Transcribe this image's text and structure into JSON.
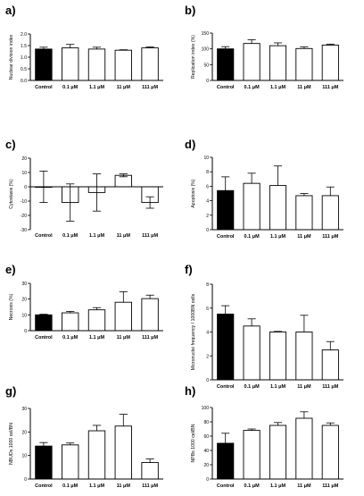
{
  "chart_data": [
    {
      "panel_label": "a)",
      "type": "bar",
      "categories": [
        "Control",
        "0.1 μM",
        "1.1 μM",
        "11 μM",
        "111 μM"
      ],
      "values": [
        1.35,
        1.4,
        1.35,
        1.3,
        1.4
      ],
      "errors": [
        0.08,
        0.15,
        0.08,
        0.02,
        0.04
      ],
      "ylabel": "Nuclear division index",
      "ylim": [
        0,
        2.0
      ],
      "yticks": [
        0.0,
        0.5,
        1.0,
        1.5,
        2.0
      ],
      "ytick_labels": [
        "0.0",
        "0.5",
        "1.0",
        "1.5",
        "2.0"
      ]
    },
    {
      "panel_label": "b)",
      "type": "bar",
      "categories": [
        "Control",
        "0.1 μM",
        "1.1 μM",
        "11 μM",
        "111 μM"
      ],
      "values": [
        100,
        117,
        110,
        101,
        112
      ],
      "errors": [
        7,
        12,
        9,
        5,
        3
      ],
      "ylabel": "Replication index (%)",
      "ylim": [
        0,
        150
      ],
      "yticks": [
        0,
        50,
        100,
        150
      ],
      "ytick_labels": [
        "0",
        "50",
        "100",
        "150"
      ]
    },
    {
      "panel_label": "c)",
      "type": "bar",
      "categories": [
        "Control",
        "0.1 μM",
        "1.1 μM",
        "11 μM",
        "111 μM"
      ],
      "values": [
        0,
        -11,
        -4,
        8,
        -11
      ],
      "errors": [
        11,
        13,
        13,
        1,
        4
      ],
      "ylabel": "Cytostasis (%)",
      "ylim": [
        -30,
        20
      ],
      "yticks": [
        -30,
        -20,
        -10,
        0,
        10,
        20
      ],
      "ytick_labels": [
        "-30",
        "-20",
        "-10",
        "0",
        "10",
        "20"
      ]
    },
    {
      "panel_label": "d)",
      "type": "bar",
      "categories": [
        "Control",
        "0.1 μM",
        "1.1 μM",
        "11 μM",
        "111 μM"
      ],
      "values": [
        5.4,
        6.4,
        6.1,
        4.7,
        4.7
      ],
      "errors": [
        1.9,
        1.4,
        2.7,
        0.3,
        1.2
      ],
      "ylabel": "Apoptosis (%)",
      "ylim": [
        0,
        10
      ],
      "yticks": [
        0,
        2,
        4,
        6,
        8,
        10
      ],
      "ytick_labels": [
        "0",
        "2",
        "4",
        "6",
        "8",
        "10"
      ]
    },
    {
      "panel_label": "e)",
      "type": "bar",
      "categories": [
        "Control",
        "0.1 μM",
        "1.1 μM",
        "11 μM",
        "111 μM"
      ],
      "values": [
        10,
        11.3,
        13.2,
        18,
        20.3
      ],
      "errors": [
        0.4,
        0.9,
        1.4,
        6.7,
        2.2
      ],
      "ylabel": "Necrosis (%)",
      "ylim": [
        0,
        30
      ],
      "yticks": [
        0,
        10,
        20,
        30
      ],
      "ytick_labels": [
        "0",
        "10",
        "20",
        "30"
      ]
    },
    {
      "panel_label": "f)",
      "type": "bar",
      "categories": [
        "Control",
        "0.1 μM",
        "1.1 μM",
        "11 μM",
        "111 μM"
      ],
      "values": [
        5.5,
        4.5,
        4.0,
        4.0,
        2.5
      ],
      "errors": [
        0.7,
        0.6,
        0.05,
        1.4,
        0.7
      ],
      "ylabel": "Micronuclei frequency / 1000BN cells",
      "ylim": [
        0,
        8
      ],
      "yticks": [
        0,
        2,
        4,
        6,
        8
      ],
      "ytick_labels": [
        "0",
        "2",
        "4",
        "6",
        "8"
      ]
    },
    {
      "panel_label": "g)",
      "type": "bar",
      "categories": [
        "Control",
        "0.1 μM",
        "1.1 μM",
        "11 μM",
        "111 μM"
      ],
      "values": [
        14,
        14.5,
        20.5,
        22.5,
        7
      ],
      "errors": [
        1.5,
        0.8,
        2.3,
        5,
        1.5
      ],
      "ylabel": "NBUDs 1000 cel/BN",
      "ylim": [
        0,
        30
      ],
      "yticks": [
        0,
        10,
        20,
        30
      ],
      "ytick_labels": [
        "0",
        "10",
        "20",
        "30"
      ]
    },
    {
      "panel_label": "h)",
      "type": "bar",
      "categories": [
        "Control",
        "0.1 μM",
        "1.1 μM",
        "11 μM",
        "111 μM"
      ],
      "values": [
        50,
        68,
        75,
        85,
        75
      ],
      "errors": [
        14,
        2,
        4,
        9,
        3.5
      ],
      "ylabel": "NPBs 1000 cel/BN",
      "ylim": [
        0,
        100
      ],
      "yticks": [
        0,
        20,
        40,
        60,
        80,
        100
      ],
      "ytick_labels": [
        "0",
        "20",
        "40",
        "60",
        "80",
        "100"
      ]
    }
  ]
}
